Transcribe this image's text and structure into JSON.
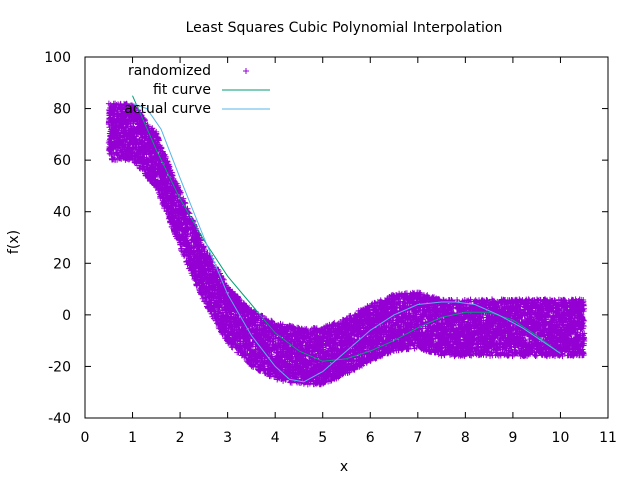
{
  "chart_data": {
    "type": "scatter",
    "title": "Least Squares Cubic Polynomial Interpolation",
    "xlabel": "x",
    "ylabel": "f(x)",
    "xlim": [
      0,
      11
    ],
    "ylim": [
      -40,
      100
    ],
    "x_ticks": [
      "0",
      "1",
      "2",
      "3",
      "4",
      "5",
      "6",
      "7",
      "8",
      "9",
      "10",
      "11"
    ],
    "y_ticks": [
      "-40",
      "-20",
      "0",
      "20",
      "40",
      "60",
      "80",
      "100"
    ],
    "grid": false,
    "legend_position": "top-left",
    "series": [
      {
        "name": "randomized",
        "kind": "scatter-band",
        "marker": "+",
        "color": "#9400d3",
        "x_range": [
          0.5,
          10.5
        ],
        "band_halfwidth": 11,
        "band_center": [
          [
            0.5,
            71
          ],
          [
            1.0,
            71
          ],
          [
            1.5,
            60
          ],
          [
            2.0,
            37
          ],
          [
            2.5,
            16
          ],
          [
            3.0,
            0
          ],
          [
            3.5,
            -9
          ],
          [
            4.0,
            -14
          ],
          [
            4.5,
            -16
          ],
          [
            5.0,
            -16
          ],
          [
            5.5,
            -12
          ],
          [
            6.0,
            -7
          ],
          [
            6.5,
            -3
          ],
          [
            7.0,
            -2
          ],
          [
            7.5,
            -5
          ],
          [
            8.0,
            -5
          ],
          [
            8.5,
            -5
          ],
          [
            9.0,
            -5
          ],
          [
            9.5,
            -5
          ],
          [
            10.0,
            -5
          ],
          [
            10.5,
            -5
          ]
        ]
      },
      {
        "name": "fit curve",
        "kind": "line",
        "color": "#009e73",
        "points": [
          [
            1.0,
            85
          ],
          [
            1.5,
            64
          ],
          [
            2.0,
            45
          ],
          [
            2.5,
            29
          ],
          [
            3.0,
            15
          ],
          [
            3.5,
            4
          ],
          [
            4.0,
            -7
          ],
          [
            4.5,
            -14
          ],
          [
            5.0,
            -18
          ],
          [
            5.5,
            -17
          ],
          [
            6.0,
            -14
          ],
          [
            6.5,
            -10
          ],
          [
            7.0,
            -5
          ],
          [
            7.5,
            -1
          ],
          [
            8.0,
            1
          ],
          [
            8.5,
            1
          ],
          [
            9.0,
            -2
          ],
          [
            9.5,
            -8
          ],
          [
            10.0,
            -15
          ]
        ]
      },
      {
        "name": "actual curve",
        "kind": "line",
        "color": "#56b4e9",
        "points": [
          [
            1.0,
            82
          ],
          [
            1.3,
            80
          ],
          [
            1.6,
            72
          ],
          [
            2.0,
            53
          ],
          [
            2.5,
            30
          ],
          [
            3.0,
            8
          ],
          [
            3.5,
            -8
          ],
          [
            4.0,
            -20
          ],
          [
            4.3,
            -25
          ],
          [
            4.6,
            -26
          ],
          [
            5.0,
            -22
          ],
          [
            5.5,
            -14
          ],
          [
            6.0,
            -6
          ],
          [
            6.5,
            0
          ],
          [
            7.0,
            4
          ],
          [
            7.5,
            5
          ],
          [
            7.8,
            5
          ],
          [
            8.2,
            4
          ],
          [
            8.7,
            0
          ],
          [
            9.2,
            -5
          ],
          [
            9.6,
            -10
          ],
          [
            10.0,
            -15
          ]
        ]
      }
    ]
  }
}
